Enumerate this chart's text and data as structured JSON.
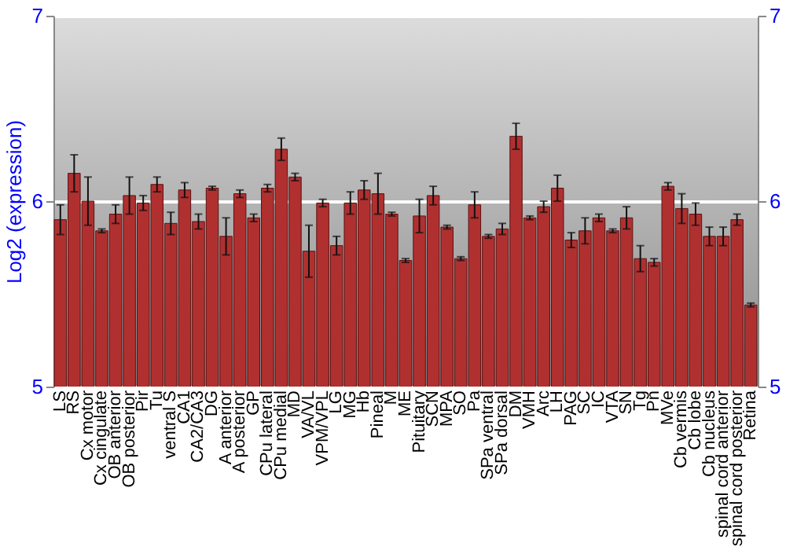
{
  "chart_data": {
    "type": "bar",
    "ylabel": "Log2 (expression)",
    "categories": [
      "LS",
      "RS",
      "Cx motor",
      "Cx cingulate",
      "OB anterior",
      "OB posterior",
      "Pir",
      "Tu",
      "ventral S",
      "CA1",
      "CA2/CA3",
      "DG",
      "A anterior",
      "A posterior",
      "GP",
      "CPu lateral",
      "CPu medial",
      "MD",
      "VA/VL",
      "VPM/VPL",
      "LG",
      "MG",
      "Hb",
      "Pineal",
      "M",
      "ME",
      "Pituitary",
      "SCN",
      "MPA",
      "SO",
      "Pa",
      "SPa ventral",
      "SPa dorsal",
      "DM",
      "VMH",
      "Arc",
      "LH",
      "PAG",
      "SC",
      "IC",
      "VTA",
      "SN",
      "Tg",
      "Pn",
      "MVe",
      "Cb vermis",
      "Cb lobe",
      "Cb nucleus",
      "spinal cord anterior",
      "spinal cord posterior",
      "Retina"
    ],
    "values": [
      5.9,
      6.15,
      6.0,
      5.84,
      5.93,
      6.03,
      5.99,
      6.09,
      5.88,
      6.06,
      5.89,
      6.07,
      5.81,
      6.04,
      5.91,
      6.07,
      6.28,
      6.13,
      5.73,
      5.99,
      5.76,
      5.99,
      6.06,
      6.04,
      5.93,
      5.68,
      5.92,
      6.03,
      5.86,
      5.69,
      5.98,
      5.81,
      5.85,
      6.35,
      5.91,
      5.97,
      6.07,
      5.79,
      5.84,
      5.91,
      5.84,
      5.91,
      5.69,
      5.67,
      6.08,
      5.96,
      5.93,
      5.81,
      5.81,
      5.9,
      5.44
    ],
    "errors": [
      0.08,
      0.1,
      0.13,
      0.01,
      0.05,
      0.1,
      0.04,
      0.04,
      0.06,
      0.04,
      0.04,
      0.01,
      0.1,
      0.02,
      0.02,
      0.02,
      0.06,
      0.02,
      0.14,
      0.02,
      0.05,
      0.06,
      0.05,
      0.11,
      0.01,
      0.01,
      0.09,
      0.05,
      0.01,
      0.01,
      0.07,
      0.01,
      0.03,
      0.07,
      0.01,
      0.03,
      0.07,
      0.04,
      0.07,
      0.02,
      0.01,
      0.06,
      0.07,
      0.02,
      0.02,
      0.08,
      0.06,
      0.05,
      0.05,
      0.03,
      0.01
    ],
    "color": "#b03030",
    "ylim": [
      5,
      7
    ],
    "yticks": [
      5,
      6,
      7
    ],
    "y2lim": [
      5,
      7
    ],
    "y2ticks": [
      5,
      6,
      7
    ],
    "grid": true
  }
}
